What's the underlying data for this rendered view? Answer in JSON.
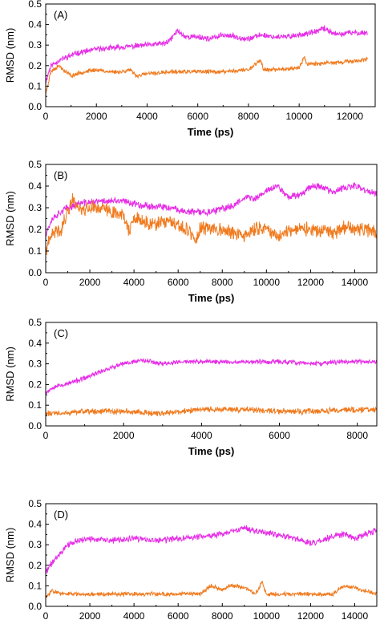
{
  "colors": {
    "magenta": "#e62ee6",
    "orange": "#f07a1e",
    "axis": "#000000"
  },
  "chart_data": [
    {
      "type": "line",
      "panel_label": "(A)",
      "xlabel": "Time (ps)",
      "ylabel": "RMSD (nm)",
      "xlim": [
        0,
        13000
      ],
      "ylim": [
        0,
        0.5
      ],
      "x_ticks": [
        "0",
        "2000",
        "4000",
        "6000",
        "8000",
        "10000",
        "12000"
      ],
      "y_ticks": [
        "0.0",
        "0.1",
        "0.2",
        "0.3",
        "0.4",
        "0.5"
      ],
      "series": [
        {
          "color": "magenta",
          "noise": 0.011,
          "seed": 11,
          "x": [
            0,
            200,
            600,
            1200,
            2000,
            3000,
            4000,
            4800,
            5200,
            5500,
            6000,
            6500,
            7000,
            7500,
            8000,
            8500,
            9000,
            9500,
            10000,
            10500,
            11000,
            11500,
            12000,
            12700
          ],
          "y": [
            0.12,
            0.2,
            0.23,
            0.26,
            0.28,
            0.29,
            0.3,
            0.31,
            0.37,
            0.34,
            0.34,
            0.33,
            0.35,
            0.34,
            0.33,
            0.35,
            0.34,
            0.34,
            0.35,
            0.36,
            0.38,
            0.35,
            0.36,
            0.36
          ]
        },
        {
          "color": "orange",
          "noise": 0.008,
          "seed": 23,
          "x": [
            0,
            200,
            500,
            1000,
            1500,
            2000,
            2500,
            3000,
            3300,
            3600,
            4000,
            5000,
            6000,
            7000,
            8000,
            8400,
            8500,
            8600,
            9000,
            10000,
            10200,
            10300,
            11000,
            12000,
            12700
          ],
          "y": [
            0.06,
            0.17,
            0.2,
            0.15,
            0.17,
            0.18,
            0.17,
            0.17,
            0.18,
            0.15,
            0.16,
            0.17,
            0.17,
            0.17,
            0.18,
            0.22,
            0.22,
            0.18,
            0.18,
            0.19,
            0.24,
            0.21,
            0.21,
            0.22,
            0.23
          ]
        }
      ]
    },
    {
      "type": "line",
      "panel_label": "(B)",
      "xlabel": "Time (ps)",
      "ylabel": "RMSD (nm)",
      "xlim": [
        0,
        15000
      ],
      "ylim": [
        0,
        0.5
      ],
      "x_ticks": [
        "0",
        "2000",
        "4000",
        "6000",
        "8000",
        "10000",
        "12000",
        "14000"
      ],
      "y_ticks": [
        "0.0",
        "0.1",
        "0.2",
        "0.3",
        "0.4",
        "0.5"
      ],
      "series": [
        {
          "color": "magenta",
          "noise": 0.013,
          "seed": 37,
          "x": [
            0,
            300,
            800,
            1500,
            2500,
            3500,
            4500,
            5500,
            6500,
            7500,
            8500,
            9000,
            9500,
            10000,
            10500,
            11000,
            11500,
            12000,
            12500,
            13000,
            13500,
            14000,
            14500,
            15000
          ],
          "y": [
            0.18,
            0.25,
            0.29,
            0.32,
            0.33,
            0.33,
            0.31,
            0.3,
            0.28,
            0.28,
            0.31,
            0.35,
            0.34,
            0.38,
            0.4,
            0.35,
            0.36,
            0.4,
            0.4,
            0.37,
            0.39,
            0.4,
            0.38,
            0.36
          ]
        },
        {
          "color": "orange",
          "noise": 0.025,
          "seed": 41,
          "x": [
            0,
            300,
            700,
            1200,
            1600,
            2000,
            2500,
            3000,
            3500,
            3800,
            4000,
            4500,
            5000,
            5500,
            6000,
            6500,
            6800,
            7000,
            7500,
            8000,
            8500,
            9000,
            9500,
            10000,
            10500,
            11000,
            11500,
            12000,
            12500,
            13000,
            13500,
            14000,
            14500,
            15000
          ],
          "y": [
            0.1,
            0.18,
            0.2,
            0.34,
            0.29,
            0.3,
            0.3,
            0.28,
            0.27,
            0.19,
            0.25,
            0.23,
            0.22,
            0.24,
            0.21,
            0.2,
            0.14,
            0.2,
            0.21,
            0.2,
            0.18,
            0.17,
            0.2,
            0.21,
            0.16,
            0.2,
            0.2,
            0.2,
            0.19,
            0.18,
            0.21,
            0.2,
            0.2,
            0.19
          ]
        }
      ]
    },
    {
      "type": "line",
      "panel_label": "(C)",
      "xlabel": "Time (ps)",
      "ylabel": "RMSD (nm)",
      "xlim": [
        0,
        8500
      ],
      "ylim": [
        0,
        0.5
      ],
      "x_ticks": [
        "0",
        "2000",
        "4000",
        "6000",
        "8000"
      ],
      "y_ticks": [
        "0.0",
        "0.1",
        "0.2",
        "0.3",
        "0.4",
        "0.5"
      ],
      "series": [
        {
          "color": "magenta",
          "noise": 0.009,
          "seed": 53,
          "x": [
            0,
            200,
            500,
            1000,
            1500,
            2000,
            2500,
            3000,
            3500,
            4000,
            5000,
            6000,
            7000,
            7500,
            8000,
            8500
          ],
          "y": [
            0.16,
            0.19,
            0.2,
            0.23,
            0.27,
            0.3,
            0.32,
            0.3,
            0.31,
            0.31,
            0.31,
            0.31,
            0.3,
            0.31,
            0.31,
            0.31
          ]
        },
        {
          "color": "orange",
          "noise": 0.011,
          "seed": 61,
          "x": [
            0,
            500,
            1000,
            2000,
            3000,
            4000,
            5000,
            6000,
            7000,
            8000,
            8500
          ],
          "y": [
            0.06,
            0.06,
            0.07,
            0.07,
            0.06,
            0.08,
            0.08,
            0.07,
            0.07,
            0.08,
            0.08
          ]
        }
      ]
    },
    {
      "type": "line",
      "panel_label": "(D)",
      "xlabel": "Time (ps)",
      "ylabel": "RMSD (nm)",
      "xlim": [
        0,
        15000
      ],
      "ylim": [
        0,
        0.5
      ],
      "x_ticks": [
        "0",
        "2000",
        "4000",
        "6000",
        "8000",
        "10000",
        "12000",
        "14000"
      ],
      "y_ticks": [
        "0.0",
        "0.1",
        "0.2",
        "0.3",
        "0.4",
        "0.5"
      ],
      "series": [
        {
          "color": "magenta",
          "noise": 0.012,
          "seed": 71,
          "x": [
            0,
            200,
            500,
            1000,
            1500,
            2000,
            3000,
            4000,
            5000,
            6000,
            7000,
            8000,
            9000,
            10000,
            11000,
            12000,
            12500,
            13000,
            13500,
            14000,
            15000
          ],
          "y": [
            0.16,
            0.2,
            0.24,
            0.3,
            0.32,
            0.33,
            0.32,
            0.33,
            0.32,
            0.33,
            0.34,
            0.35,
            0.38,
            0.36,
            0.34,
            0.31,
            0.32,
            0.34,
            0.35,
            0.33,
            0.37
          ]
        },
        {
          "color": "orange",
          "noise": 0.008,
          "seed": 83,
          "x": [
            0,
            300,
            700,
            1500,
            3000,
            4500,
            6000,
            7000,
            7500,
            8000,
            8300,
            8500,
            9000,
            9500,
            9800,
            10000,
            10500,
            11000,
            12000,
            13000,
            13500,
            14000,
            15000
          ],
          "y": [
            0.04,
            0.08,
            0.06,
            0.06,
            0.06,
            0.06,
            0.06,
            0.06,
            0.1,
            0.08,
            0.1,
            0.1,
            0.09,
            0.06,
            0.12,
            0.06,
            0.06,
            0.06,
            0.06,
            0.06,
            0.1,
            0.09,
            0.06
          ]
        }
      ]
    }
  ]
}
